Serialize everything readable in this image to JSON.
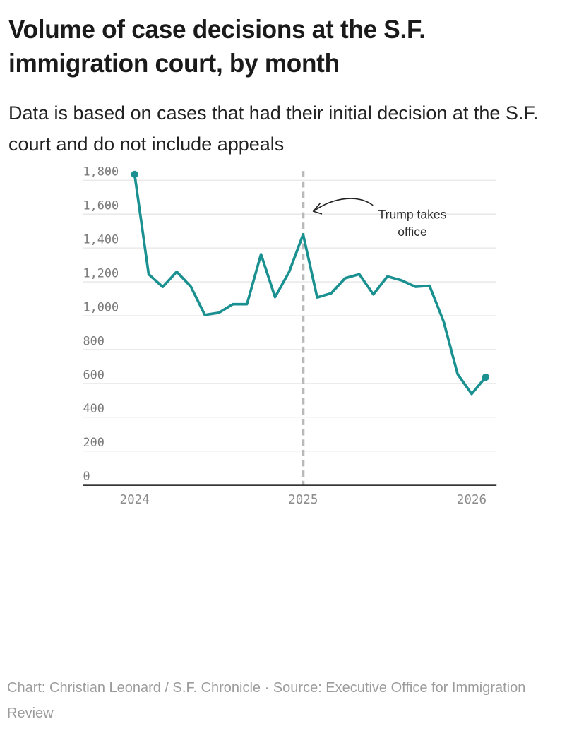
{
  "header": {
    "title": "Volume of case decisions at the S.F. immigration court, by month",
    "subtitle": "Data is based on cases that had their initial decision at the S.F. court and do not include appeals"
  },
  "chart_data": {
    "type": "line",
    "title": "Volume of case decisions at the S.F. immigration court, by month",
    "x": [
      "Jan 2024",
      "Feb 2024",
      "Mar 2024",
      "Apr 2024",
      "May 2024",
      "Jun 2024",
      "Jul 2024",
      "Aug 2024",
      "Sep 2024",
      "Oct 2024",
      "Nov 2024",
      "Dec 2024",
      "Jan 2025",
      "Feb 2025",
      "Mar 2025",
      "Apr 2025",
      "May 2025",
      "Jun 2025",
      "Jul 2025",
      "Aug 2025",
      "Sep 2025",
      "Oct 2025",
      "Nov 2025",
      "Dec 2025",
      "Jan 2026",
      "Feb 2026"
    ],
    "values": [
      1835,
      1245,
      1170,
      1260,
      1172,
      1005,
      1017,
      1068,
      1068,
      1363,
      1110,
      1258,
      1480,
      1108,
      1133,
      1222,
      1245,
      1126,
      1232,
      1209,
      1171,
      1177,
      967,
      655,
      538,
      637
    ],
    "series_name": "Case decisions per month",
    "ylim": [
      0,
      1800
    ],
    "ytick_interval": 200,
    "ytick_labels": [
      "1,800",
      "1,600",
      "1,400",
      "1,200",
      "1,000",
      "800",
      "600",
      "400",
      "200",
      "0"
    ],
    "xticks": [
      {
        "label": "2024",
        "index": 0
      },
      {
        "label": "2025",
        "index": 12
      },
      {
        "label": "2026",
        "index": 24
      }
    ],
    "grid": true,
    "legend": "none",
    "endpoint_markers": true,
    "annotation": {
      "lines": [
        "Trump takes",
        "office"
      ],
      "target_x": "Jan 2025",
      "target_index": 12
    },
    "colors": {
      "line": "#1a9190",
      "grid": "#e6e6e6",
      "axis": "#1a1a1a",
      "event_line": "#b9b9b9",
      "ytick_text": "#7a7a7a",
      "xtick_text": "#8c8c8c",
      "annotation_text": "#2e2e2e",
      "arrow": "#222222"
    }
  },
  "footer": {
    "credit": "Chart: Christian Leonard / S.F. Chronicle · Source: Executive Office for Immigration Review"
  }
}
